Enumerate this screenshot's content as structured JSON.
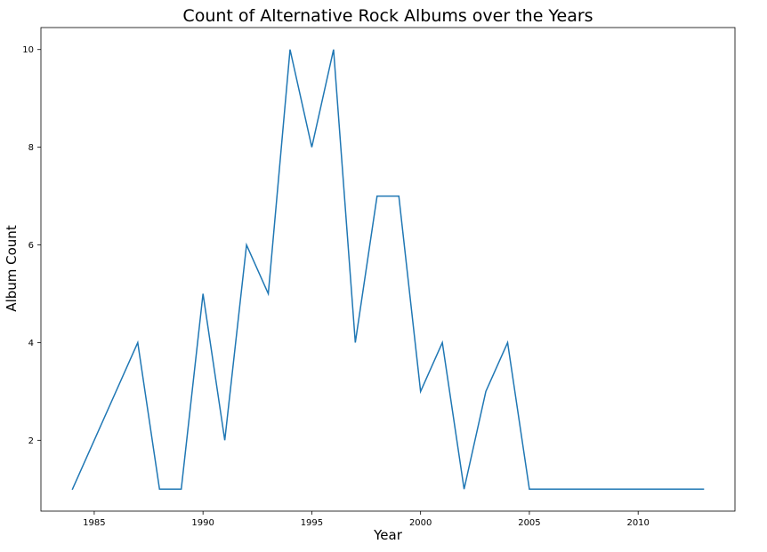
{
  "chart_data": {
    "type": "line",
    "title": "Count of Alternative Rock Albums over the Years",
    "xlabel": "Year",
    "ylabel": "Album Count",
    "xlim": [
      1982.55,
      2014.45
    ],
    "ylim": [
      0.55,
      10.45
    ],
    "x_ticks": [
      1985,
      1990,
      1995,
      2000,
      2005,
      2010
    ],
    "y_ticks": [
      2,
      4,
      6,
      8,
      10
    ],
    "grid": false,
    "legend": "none",
    "series": [
      {
        "color": "#1f77b4",
        "x": [
          1984,
          1987,
          1988,
          1989,
          1990,
          1991,
          1992,
          1993,
          1994,
          1995,
          1996,
          1997,
          1998,
          1999,
          2000,
          2001,
          2002,
          2003,
          2004,
          2005,
          2013
        ],
        "y": [
          1,
          4,
          1,
          1,
          5,
          2,
          6,
          5,
          10,
          8,
          10,
          4,
          7,
          7,
          3,
          4,
          1,
          3,
          4,
          1,
          1
        ]
      }
    ]
  }
}
